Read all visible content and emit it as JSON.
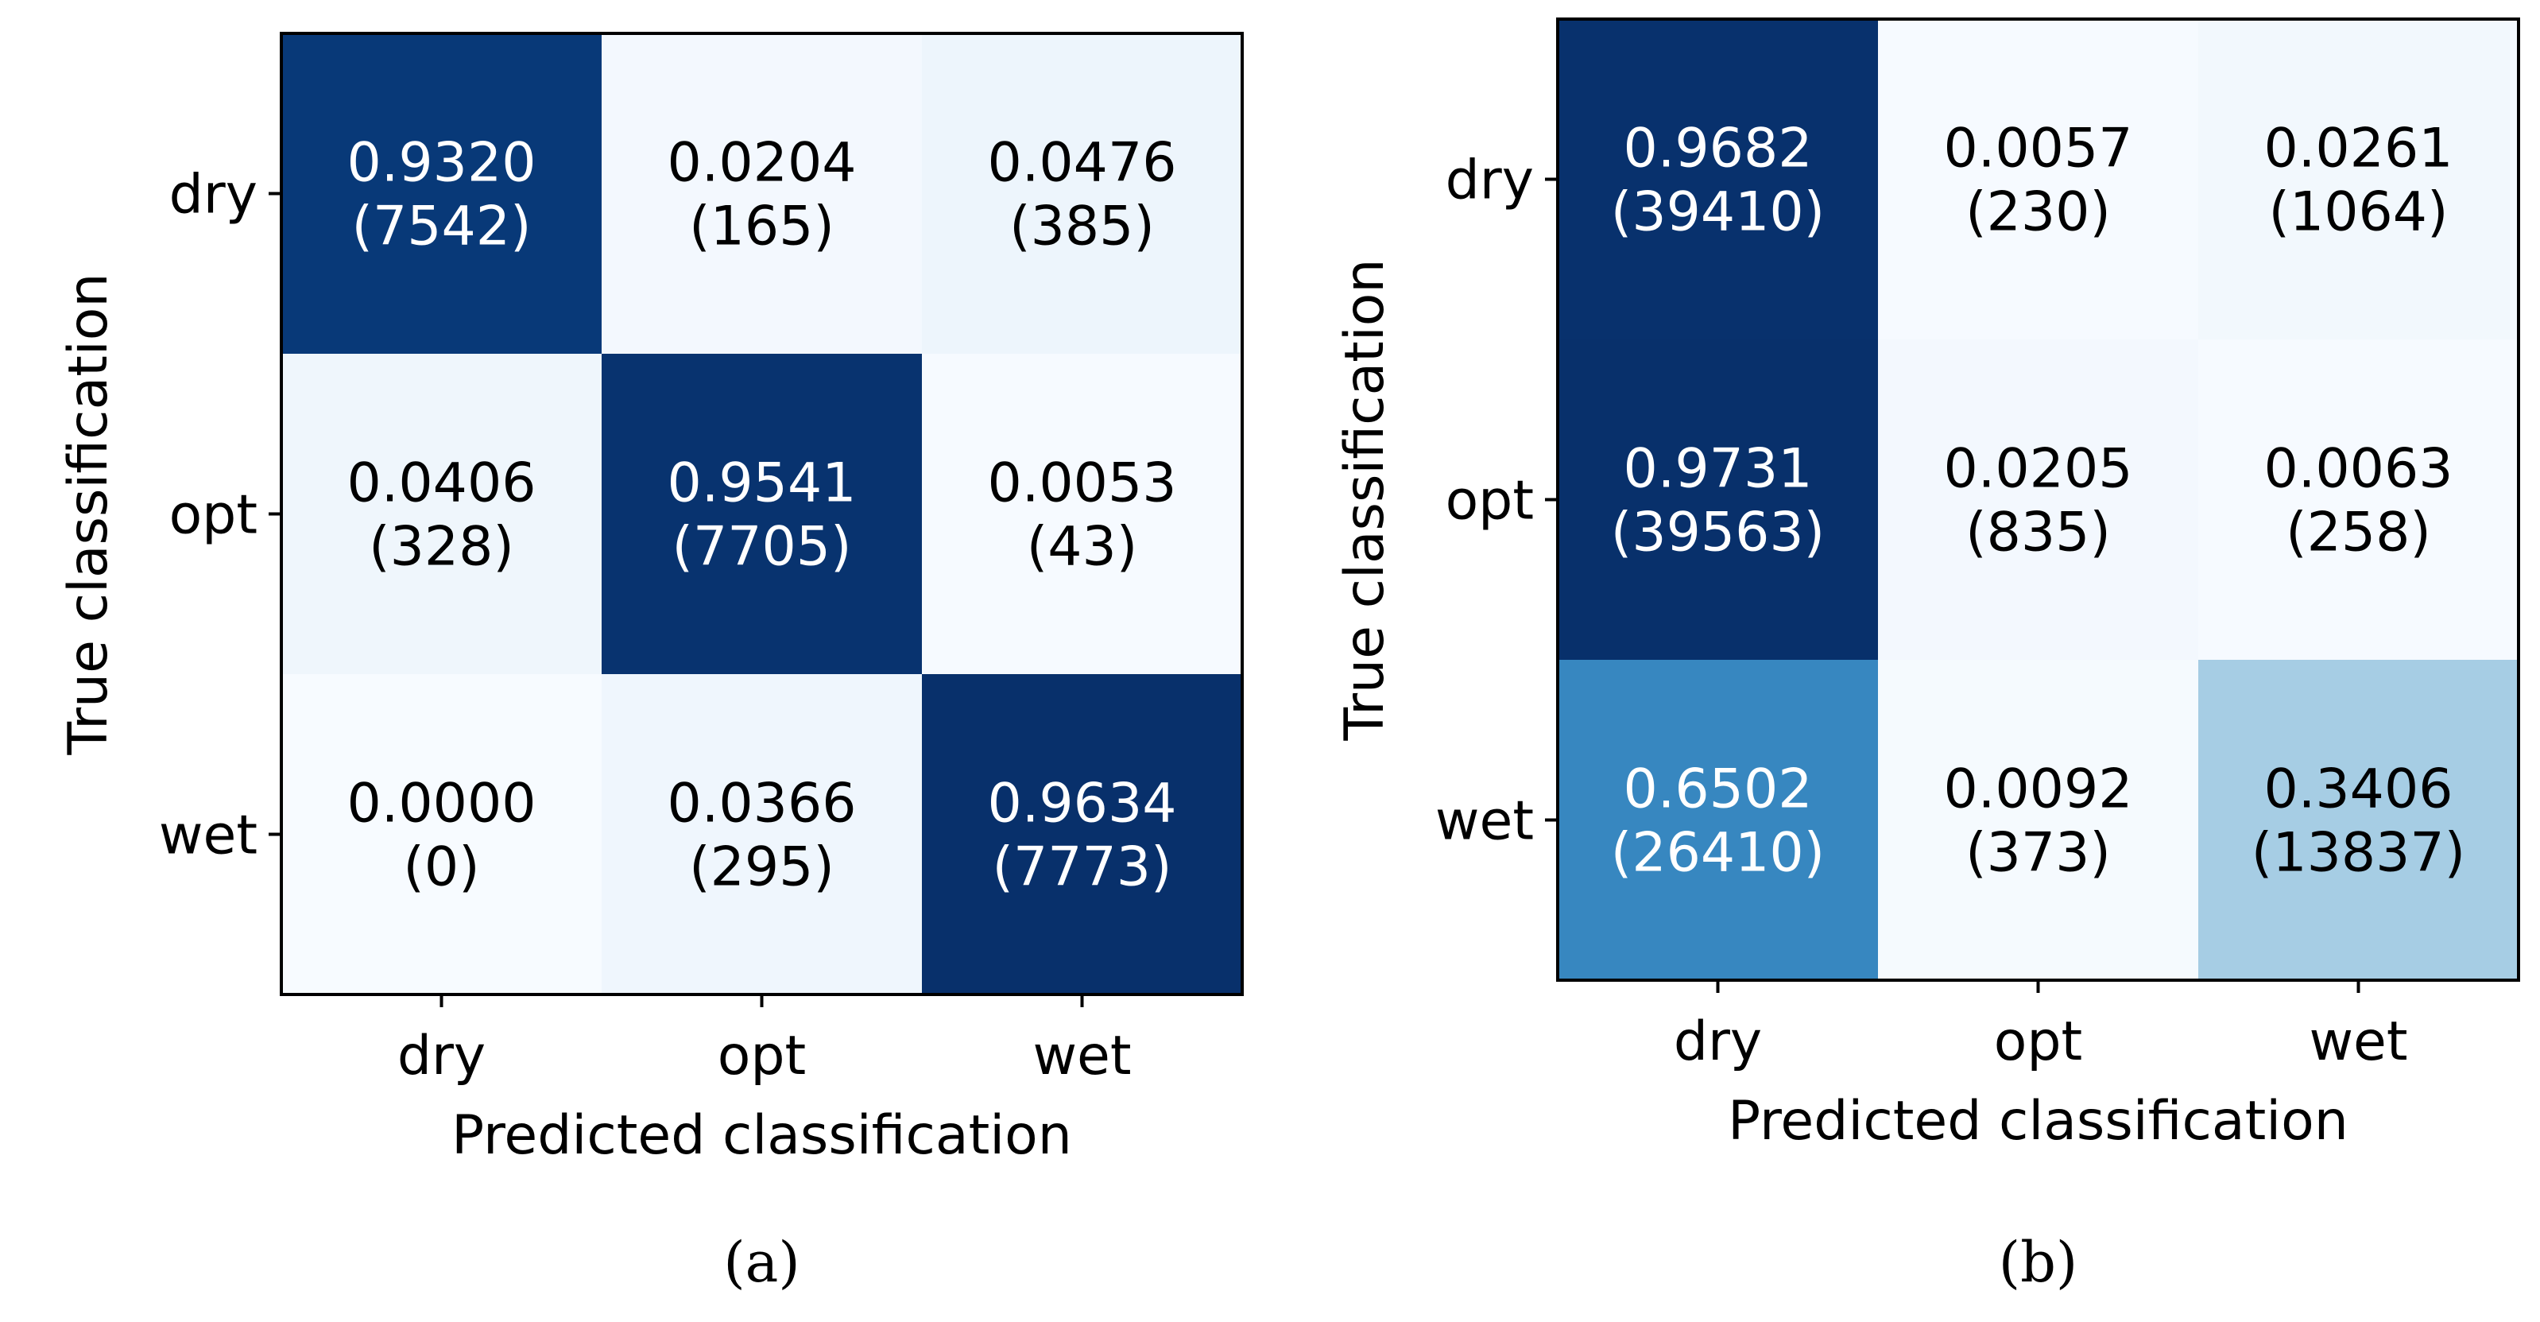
{
  "chart_data": [
    {
      "type": "heatmap",
      "panel_label": "(a)",
      "xlabel": "Predicted classification",
      "ylabel": "True classification",
      "x_categories": [
        "dry",
        "opt",
        "wet"
      ],
      "y_categories": [
        "dry",
        "opt",
        "wet"
      ],
      "colormap": "Blues",
      "colors": {
        "low": "#f7fbff",
        "high": "#08306b",
        "text_dark": "#000000",
        "text_light": "#ffffff"
      },
      "cells": [
        [
          {
            "value": 0.932,
            "label": "0.9320",
            "count": "(7542)"
          },
          {
            "value": 0.0204,
            "label": "0.0204",
            "count": "(165)"
          },
          {
            "value": 0.0476,
            "label": "0.0476",
            "count": "(385)"
          }
        ],
        [
          {
            "value": 0.0406,
            "label": "0.0406",
            "count": "(328)"
          },
          {
            "value": 0.9541,
            "label": "0.9541",
            "count": "(7705)"
          },
          {
            "value": 0.0053,
            "label": "0.0053",
            "count": "(43)"
          }
        ],
        [
          {
            "value": 0.0,
            "label": "0.0000",
            "count": "(0)"
          },
          {
            "value": 0.0366,
            "label": "0.0366",
            "count": "(295)"
          },
          {
            "value": 0.9634,
            "label": "0.9634",
            "count": "(7773)"
          }
        ]
      ]
    },
    {
      "type": "heatmap",
      "panel_label": "(b)",
      "xlabel": "Predicted classification",
      "ylabel": "True classification",
      "x_categories": [
        "dry",
        "opt",
        "wet"
      ],
      "y_categories": [
        "dry",
        "opt",
        "wet"
      ],
      "colormap": "Blues",
      "colors": {
        "low": "#f7fbff",
        "high": "#08306b",
        "text_dark": "#000000",
        "text_light": "#ffffff"
      },
      "cells": [
        [
          {
            "value": 0.9682,
            "label": "0.9682",
            "count": "(39410)"
          },
          {
            "value": 0.0057,
            "label": "0.0057",
            "count": "(230)"
          },
          {
            "value": 0.0261,
            "label": "0.0261",
            "count": "(1064)"
          }
        ],
        [
          {
            "value": 0.9731,
            "label": "0.9731",
            "count": "(39563)"
          },
          {
            "value": 0.0205,
            "label": "0.0205",
            "count": "(835)"
          },
          {
            "value": 0.0063,
            "label": "0.0063",
            "count": "(258)"
          }
        ],
        [
          {
            "value": 0.6502,
            "label": "0.6502",
            "count": "(26410)"
          },
          {
            "value": 0.0092,
            "label": "0.0092",
            "count": "(373)"
          },
          {
            "value": 0.3406,
            "label": "0.3406",
            "count": "(13837)"
          }
        ]
      ]
    }
  ]
}
